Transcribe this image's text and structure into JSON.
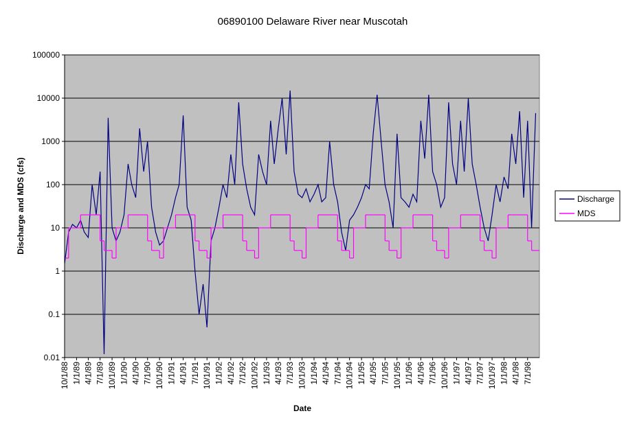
{
  "chart_data": {
    "type": "line",
    "title": "06890100 Delaware River near Muscotah",
    "x_label": "Date",
    "y_label": "Discharge and MDS (cfs)",
    "log_scale": true,
    "grid": true,
    "legend": "right",
    "xlim": [
      "10/1/88",
      "9/30/98"
    ],
    "xticks": [
      "10/1/88",
      "1/1/89",
      "4/1/89",
      "7/1/89",
      "10/1/89",
      "1/1/90",
      "4/1/90",
      "7/1/90",
      "10/1/90",
      "1/1/91",
      "4/1/91",
      "7/1/91",
      "10/1/91",
      "1/1/92",
      "4/1/92",
      "7/1/92",
      "10/1/92",
      "1/1/93",
      "4/1/93",
      "7/1/93",
      "10/1/93",
      "1/1/94",
      "4/1/94",
      "7/1/94",
      "10/1/94",
      "1/1/95",
      "4/1/95",
      "7/1/95",
      "10/1/95",
      "1/1/96",
      "4/1/96",
      "7/1/96",
      "10/1/96",
      "1/1/97",
      "4/1/97",
      "7/1/97",
      "10/1/97",
      "1/1/98",
      "4/1/98",
      "7/1/98"
    ],
    "ylim": [
      0.01,
      100000
    ],
    "yticks": [
      0.01,
      0.1,
      1,
      10,
      100,
      1000,
      10000,
      100000
    ],
    "x": [
      "10/1/88",
      "11/1/88",
      "12/1/88",
      "1/1/89",
      "2/1/89",
      "3/1/89",
      "4/1/89",
      "5/1/89",
      "6/1/89",
      "7/1/89",
      "8/1/89",
      "9/1/89",
      "10/1/89",
      "11/1/89",
      "12/1/89",
      "1/1/90",
      "2/1/90",
      "3/1/90",
      "4/1/90",
      "5/1/90",
      "6/1/90",
      "7/1/90",
      "8/1/90",
      "9/1/90",
      "10/1/90",
      "11/1/90",
      "12/1/90",
      "1/1/91",
      "2/1/91",
      "3/1/91",
      "4/1/91",
      "5/1/91",
      "6/1/91",
      "7/1/91",
      "8/1/91",
      "9/1/91",
      "10/1/91",
      "11/1/91",
      "12/1/91",
      "1/1/92",
      "2/1/92",
      "3/1/92",
      "4/1/92",
      "5/1/92",
      "6/1/92",
      "7/1/92",
      "8/1/92",
      "9/1/92",
      "10/1/92",
      "11/1/92",
      "12/1/92",
      "1/1/93",
      "2/1/93",
      "3/1/93",
      "4/1/93",
      "5/1/93",
      "6/1/93",
      "7/1/93",
      "8/1/93",
      "9/1/93",
      "10/1/93",
      "11/1/93",
      "12/1/93",
      "1/1/94",
      "2/1/94",
      "3/1/94",
      "4/1/94",
      "5/1/94",
      "6/1/94",
      "7/1/94",
      "8/1/94",
      "9/1/94",
      "10/1/94",
      "11/1/94",
      "12/1/94",
      "1/1/95",
      "2/1/95",
      "3/1/95",
      "4/1/95",
      "5/1/95",
      "6/1/95",
      "7/1/95",
      "8/1/95",
      "9/1/95",
      "10/1/95",
      "11/1/95",
      "12/1/95",
      "1/1/96",
      "2/1/96",
      "3/1/96",
      "4/1/96",
      "5/1/96",
      "6/1/96",
      "7/1/96",
      "8/1/96",
      "9/1/96",
      "10/1/96",
      "11/1/96",
      "12/1/96",
      "1/1/97",
      "2/1/97",
      "3/1/97",
      "4/1/97",
      "5/1/97",
      "6/1/97",
      "7/1/97",
      "8/1/97",
      "9/1/97",
      "10/1/97",
      "11/1/97",
      "12/1/97",
      "1/1/98",
      "2/1/98",
      "3/1/98",
      "4/1/98",
      "5/1/98",
      "6/1/98",
      "7/1/98",
      "8/1/98",
      "9/1/98"
    ],
    "series": [
      {
        "name": "Discharge",
        "color": "#000080",
        "values": [
          1.5,
          8,
          12,
          10,
          15,
          8,
          6,
          100,
          20,
          200,
          0.012,
          3500,
          10,
          5,
          8,
          20,
          300,
          100,
          50,
          2000,
          200,
          1000,
          30,
          8,
          4,
          5,
          10,
          20,
          50,
          100,
          4000,
          30,
          15,
          1,
          0.1,
          0.5,
          0.05,
          5,
          10,
          30,
          100,
          50,
          500,
          100,
          8000,
          300,
          80,
          30,
          20,
          500,
          200,
          100,
          3000,
          300,
          2000,
          10000,
          500,
          15000,
          200,
          60,
          50,
          80,
          40,
          60,
          100,
          40,
          50,
          1000,
          100,
          40,
          8,
          3,
          15,
          20,
          30,
          50,
          100,
          80,
          1500,
          12000,
          1000,
          100,
          40,
          10,
          1500,
          50,
          40,
          30,
          60,
          40,
          3000,
          400,
          12000,
          200,
          100,
          30,
          50,
          8000,
          300,
          100,
          3000,
          200,
          10000,
          300,
          100,
          30,
          10,
          5,
          20,
          100,
          40,
          150,
          80,
          1500,
          300,
          5000,
          50,
          3000,
          10,
          4500
        ]
      },
      {
        "name": "MDS",
        "color": "#ff00ff",
        "values": [
          2,
          10,
          10,
          10,
          20,
          20,
          20,
          20,
          20,
          5,
          3,
          3,
          2,
          10,
          10,
          10,
          20,
          20,
          20,
          20,
          20,
          5,
          3,
          3,
          2,
          10,
          10,
          10,
          20,
          20,
          20,
          20,
          20,
          5,
          3,
          3,
          2,
          10,
          10,
          10,
          20,
          20,
          20,
          20,
          20,
          5,
          3,
          3,
          2,
          10,
          10,
          10,
          20,
          20,
          20,
          20,
          20,
          5,
          3,
          3,
          2,
          10,
          10,
          10,
          20,
          20,
          20,
          20,
          20,
          5,
          3,
          3,
          2,
          10,
          10,
          10,
          20,
          20,
          20,
          20,
          20,
          5,
          3,
          3,
          2,
          10,
          10,
          10,
          20,
          20,
          20,
          20,
          20,
          5,
          3,
          3,
          2,
          10,
          10,
          10,
          20,
          20,
          20,
          20,
          20,
          5,
          3,
          3,
          2,
          10,
          10,
          10,
          20,
          20,
          20,
          20,
          20,
          5,
          3,
          3
        ]
      }
    ]
  }
}
